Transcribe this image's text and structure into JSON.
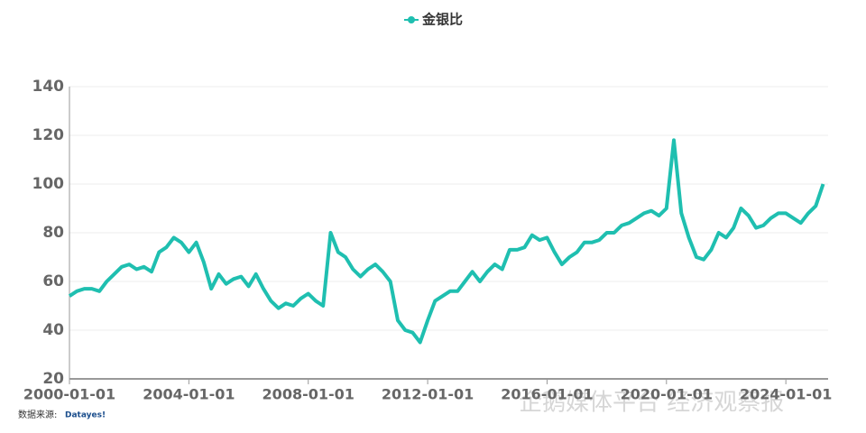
{
  "chart_data": {
    "type": "line",
    "x": [
      "2000-01-01",
      "2000-04-01",
      "2000-07-01",
      "2000-10-01",
      "2001-01-01",
      "2001-04-01",
      "2001-07-01",
      "2001-10-01",
      "2002-01-01",
      "2002-04-01",
      "2002-07-01",
      "2002-10-01",
      "2003-01-01",
      "2003-04-01",
      "2003-07-01",
      "2003-10-01",
      "2004-01-01",
      "2004-04-01",
      "2004-07-01",
      "2004-10-01",
      "2005-01-01",
      "2005-04-01",
      "2005-07-01",
      "2005-10-01",
      "2006-01-01",
      "2006-04-01",
      "2006-07-01",
      "2006-10-01",
      "2007-01-01",
      "2007-04-01",
      "2007-07-01",
      "2007-10-01",
      "2008-01-01",
      "2008-04-01",
      "2008-07-01",
      "2008-10-01",
      "2009-01-01",
      "2009-04-01",
      "2009-07-01",
      "2009-10-01",
      "2010-01-01",
      "2010-04-01",
      "2010-07-01",
      "2010-10-01",
      "2011-01-01",
      "2011-04-01",
      "2011-07-01",
      "2011-10-01",
      "2012-01-01",
      "2012-04-01",
      "2012-07-01",
      "2012-10-01",
      "2013-01-01",
      "2013-04-01",
      "2013-07-01",
      "2013-10-01",
      "2014-01-01",
      "2014-04-01",
      "2014-07-01",
      "2014-10-01",
      "2015-01-01",
      "2015-04-01",
      "2015-07-01",
      "2015-10-01",
      "2016-01-01",
      "2016-04-01",
      "2016-07-01",
      "2016-10-01",
      "2017-01-01",
      "2017-04-01",
      "2017-07-01",
      "2017-10-01",
      "2018-01-01",
      "2018-04-01",
      "2018-07-01",
      "2018-10-01",
      "2019-01-01",
      "2019-04-01",
      "2019-07-01",
      "2019-10-01",
      "2020-01-01",
      "2020-04-01",
      "2020-07-01",
      "2020-10-01",
      "2021-01-01",
      "2021-04-01",
      "2021-07-01",
      "2021-10-01",
      "2022-01-01",
      "2022-04-01",
      "2022-07-01",
      "2022-10-01",
      "2023-01-01",
      "2023-04-01",
      "2023-07-01",
      "2023-10-01",
      "2024-01-01",
      "2024-04-01",
      "2024-07-01",
      "2024-10-01",
      "2025-01-01",
      "2025-04-01"
    ],
    "series": [
      {
        "name": "金银比",
        "color": "#1fbfb0",
        "values": [
          54,
          56,
          57,
          57,
          56,
          60,
          63,
          66,
          67,
          65,
          66,
          64,
          72,
          74,
          78,
          76,
          72,
          76,
          68,
          57,
          63,
          59,
          61,
          62,
          58,
          63,
          57,
          52,
          49,
          51,
          50,
          53,
          55,
          52,
          50,
          80,
          72,
          70,
          65,
          62,
          65,
          67,
          64,
          60,
          44,
          40,
          39,
          35,
          44,
          52,
          54,
          56,
          56,
          60,
          64,
          60,
          64,
          67,
          65,
          73,
          73,
          74,
          79,
          77,
          78,
          72,
          67,
          70,
          72,
          76,
          76,
          77,
          80,
          80,
          83,
          84,
          86,
          88,
          89,
          87,
          90,
          118,
          88,
          78,
          70,
          69,
          73,
          80,
          78,
          82,
          90,
          87,
          82,
          83,
          86,
          88,
          88,
          86,
          84,
          88,
          91,
          100
        ]
      }
    ],
    "xlim": [
      "2000-01-01",
      "2025-06-01"
    ],
    "xticks": [
      "2000-01-01",
      "2004-01-01",
      "2008-01-01",
      "2012-01-01",
      "2016-01-01",
      "2020-01-01",
      "2024-01-01"
    ],
    "ylim": [
      20,
      140
    ],
    "yticks": [
      20,
      40,
      60,
      80,
      100,
      120,
      140
    ],
    "grid": true,
    "source": "数据来源:",
    "source_brand": "Datayes!",
    "watermark": "企鹅媒体平台 经济观察报"
  }
}
